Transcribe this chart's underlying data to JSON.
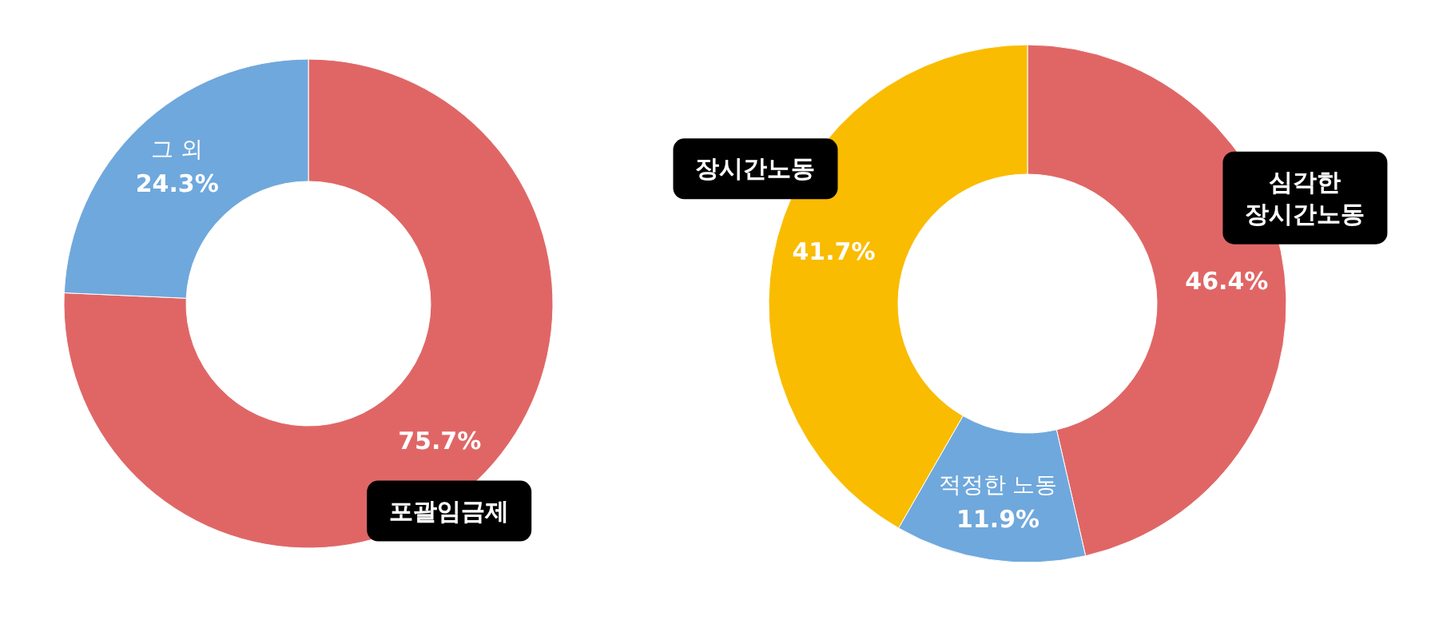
{
  "chart_data": [
    {
      "type": "donut",
      "categories": [
        "포괄임금제",
        "그 외"
      ],
      "values": [
        75.7,
        24.3
      ],
      "colors": [
        "#e06666",
        "#6fa8dc"
      ],
      "value_labels": [
        "75.7%",
        "24.3%"
      ]
    },
    {
      "type": "donut",
      "categories": [
        "심각한 장시간노동",
        "적정한 노동",
        "장시간노동"
      ],
      "values": [
        46.4,
        11.9,
        41.7
      ],
      "colors": [
        "#e06666",
        "#6fa8dc",
        "#f9bc00"
      ],
      "value_labels": [
        "46.4%",
        "11.9%",
        "41.7%"
      ]
    }
  ]
}
